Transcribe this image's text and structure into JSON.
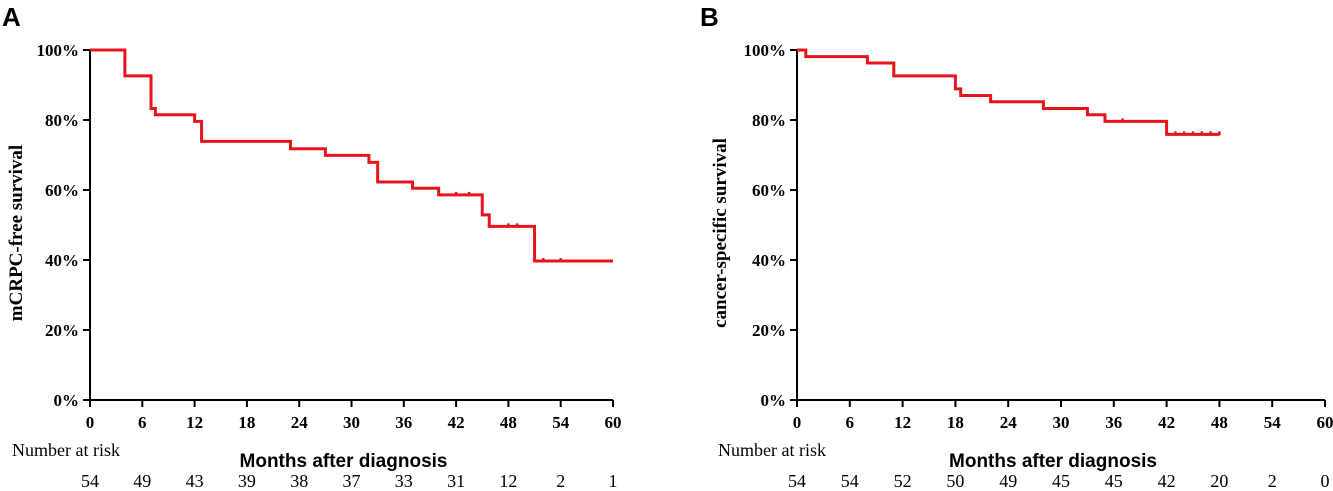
{
  "chart_data": [
    {
      "type": "line",
      "panel_label": "A",
      "title": "",
      "ylabel": "mCRPC-free survival",
      "xlabel": "Months after diagnosis",
      "xlim": [
        0,
        60
      ],
      "ylim": [
        0,
        100
      ],
      "x_ticks": [
        "0",
        "6",
        "12",
        "18",
        "24",
        "30",
        "36",
        "42",
        "48",
        "54",
        "60"
      ],
      "y_ticks": [
        "0%",
        "20%",
        "40%",
        "60%",
        "80%",
        "100%"
      ],
      "line_color": "#e8141b",
      "series": [
        {
          "name": "mCRPC-free survival",
          "step_x": [
            0,
            4,
            7,
            7.5,
            12,
            12.8,
            23,
            27,
            32,
            33,
            37,
            40,
            45,
            45.8,
            51,
            60
          ],
          "step_y": [
            100,
            92.6,
            83.3,
            81.5,
            79.6,
            73.9,
            71.8,
            69.9,
            67.9,
            62.3,
            60.5,
            58.6,
            52.9,
            49.6,
            39.7,
            39.7
          ],
          "censor_x": [
            42,
            43.5,
            48,
            49,
            52,
            54
          ],
          "censor_y": [
            58.6,
            58.6,
            49.6,
            49.6,
            39.7,
            39.7
          ]
        }
      ],
      "risk_table": {
        "title": "Number at risk",
        "times": [
          0,
          6,
          12,
          18,
          24,
          30,
          36,
          42,
          48,
          54,
          60
        ],
        "values": [
          "54",
          "49",
          "43",
          "39",
          "38",
          "37",
          "33",
          "31",
          "12",
          "2",
          "1"
        ]
      }
    },
    {
      "type": "line",
      "panel_label": "B",
      "title": "",
      "ylabel": "cancer-specific survival",
      "xlabel": "Months after diagnosis",
      "xlim": [
        0,
        60
      ],
      "ylim": [
        0,
        100
      ],
      "x_ticks": [
        "0",
        "6",
        "12",
        "18",
        "24",
        "30",
        "36",
        "42",
        "48",
        "54",
        "60"
      ],
      "y_ticks": [
        "0%",
        "20%",
        "40%",
        "60%",
        "80%",
        "100%"
      ],
      "line_color": "#e8141b",
      "series": [
        {
          "name": "cancer-specific survival",
          "step_x": [
            0,
            1,
            8,
            11,
            18,
            18.6,
            20,
            22,
            28,
            33,
            35,
            42,
            48
          ],
          "step_y": [
            100,
            98.1,
            96.3,
            92.6,
            88.9,
            87.0,
            87.0,
            85.2,
            83.3,
            81.5,
            79.6,
            75.9,
            75.9
          ],
          "censor_x": [
            37,
            43,
            44,
            45,
            46,
            47,
            48
          ],
          "censor_y": [
            79.6,
            75.9,
            75.9,
            75.9,
            75.9,
            75.9,
            75.9
          ]
        }
      ],
      "risk_table": {
        "title": "Number at risk",
        "times": [
          0,
          6,
          12,
          18,
          24,
          30,
          36,
          42,
          48,
          54,
          60
        ],
        "values": [
          "54",
          "54",
          "52",
          "50",
          "49",
          "45",
          "45",
          "42",
          "20",
          "2",
          "0"
        ]
      }
    }
  ]
}
